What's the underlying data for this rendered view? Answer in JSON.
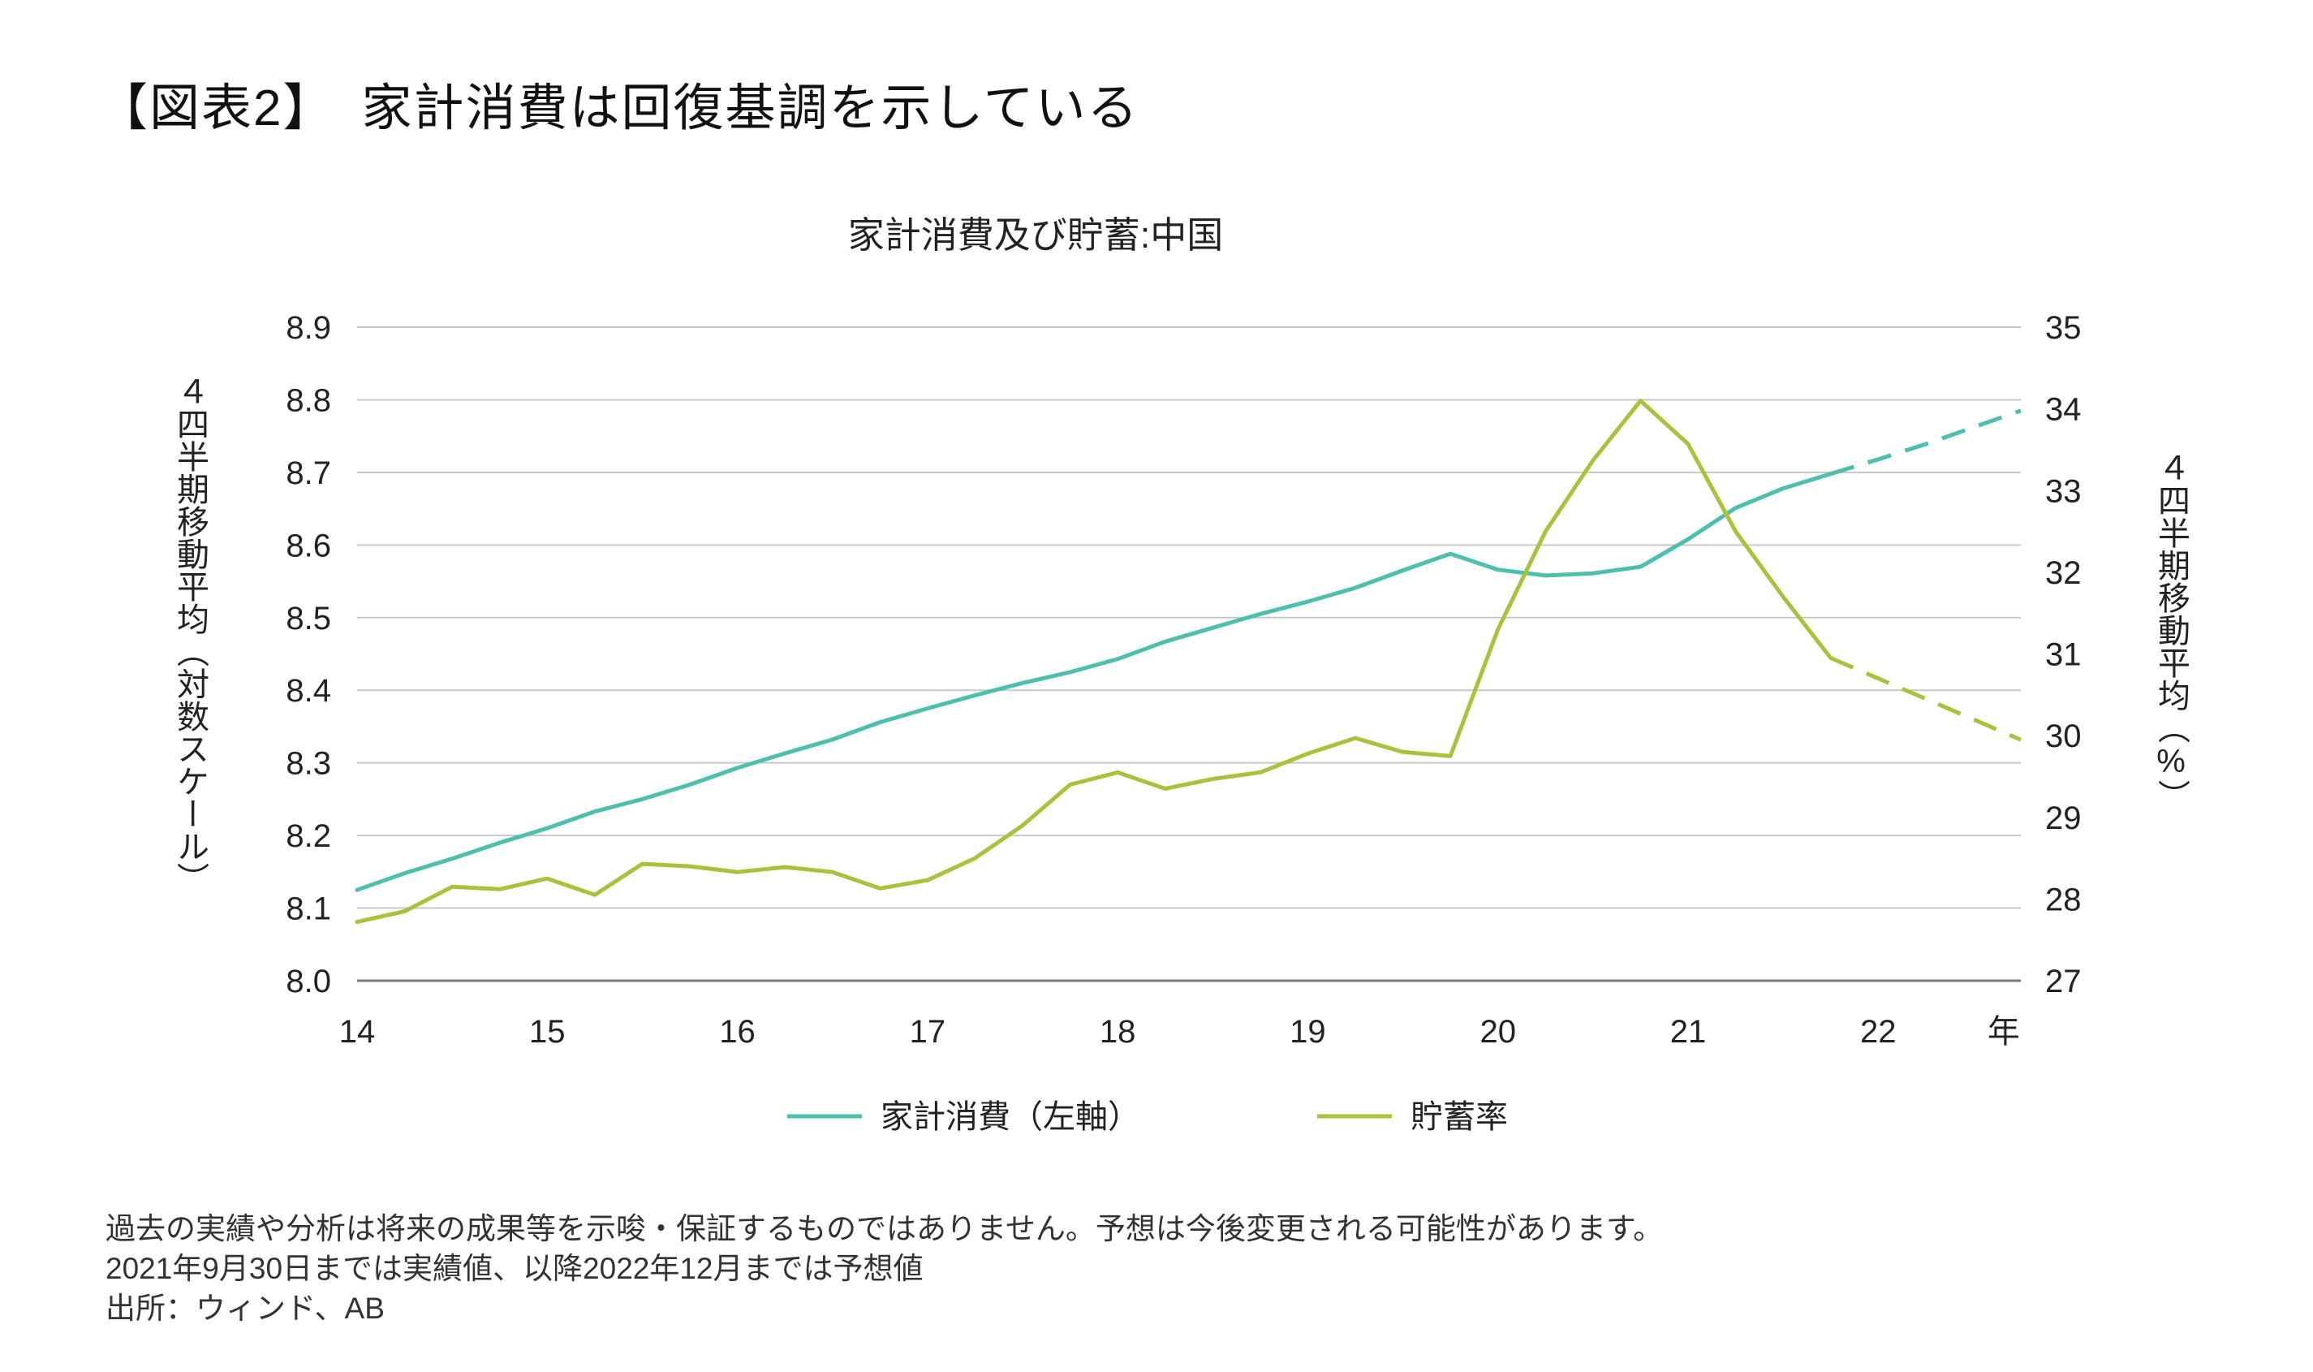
{
  "heading": "【図表2】　家計消費は回復基調を示している",
  "notes": {
    "line1": "過去の実績や分析は将来の成果等を示唆・保証するものではありません。予想は今後変更される可能性があります。",
    "line2": "2021年9月30日までは実績値、以降2022年12月までは予想値",
    "line3": "出所：ウィンド、AB"
  },
  "colors": {
    "consumption": "#4dbfae",
    "saving": "#a9c23b",
    "grid": "#c8c8c8",
    "axis": "#777777"
  },
  "chart_data": {
    "type": "line",
    "title": "家計消費及び貯蓄:中国",
    "ylabel_left": "４四半期移動平均（対数スケール）",
    "ylabel_right": "４四半期移動平均（%）",
    "ylim_left": [
      8.0,
      8.9
    ],
    "ylim_right": [
      27,
      35
    ],
    "yticks_left": [
      "8.9",
      "8.8",
      "8.7",
      "8.6",
      "8.5",
      "8.4",
      "8.3",
      "8.2",
      "8.1",
      "8.0"
    ],
    "yticks_right": [
      "35",
      "34",
      "33",
      "32",
      "31",
      "30",
      "29",
      "28",
      "27"
    ],
    "xlim": [
      2014.0,
      2022.75
    ],
    "xticks": [
      {
        "value": 2014,
        "label": "14"
      },
      {
        "value": 2015,
        "label": "15"
      },
      {
        "value": 2016,
        "label": "16"
      },
      {
        "value": 2017,
        "label": "17"
      },
      {
        "value": 2018,
        "label": "18"
      },
      {
        "value": 2019,
        "label": "19"
      },
      {
        "value": 2020,
        "label": "20"
      },
      {
        "value": 2021,
        "label": "21"
      },
      {
        "value": 2022,
        "label": "22"
      },
      {
        "value": 2022.66,
        "label": "年"
      }
    ],
    "grid": true,
    "legend_position": "bottom",
    "series": [
      {
        "name": "家計消費（左軸）",
        "axis": "left",
        "color_key": "consumption",
        "x": [
          2014.0,
          2014.25,
          2014.5,
          2014.75,
          2015.0,
          2015.25,
          2015.5,
          2015.75,
          2016.0,
          2016.25,
          2016.5,
          2016.75,
          2017.0,
          2017.25,
          2017.5,
          2017.75,
          2018.0,
          2018.25,
          2018.5,
          2018.75,
          2019.0,
          2019.25,
          2019.5,
          2019.75,
          2020.0,
          2020.25,
          2020.5,
          2020.75,
          2021.0,
          2021.25,
          2021.5,
          2021.75,
          2022.0,
          2022.25,
          2022.5,
          2022.75
        ],
        "values": [
          8.125,
          8.148,
          8.168,
          8.19,
          8.21,
          8.233,
          8.25,
          8.27,
          8.293,
          8.313,
          8.332,
          8.356,
          8.375,
          8.393,
          8.41,
          8.425,
          8.443,
          8.467,
          8.486,
          8.505,
          8.522,
          8.541,
          8.565,
          8.588,
          8.566,
          8.558,
          8.561,
          8.57,
          8.608,
          8.651,
          8.678,
          8.698,
          8.718,
          8.739,
          8.762,
          8.785
        ],
        "actual_until_index": 31
      },
      {
        "name": "貯蓄率",
        "axis": "right",
        "color_key": "saving",
        "x": [
          2014.0,
          2014.25,
          2014.5,
          2014.75,
          2015.0,
          2015.25,
          2015.5,
          2015.75,
          2016.0,
          2016.25,
          2016.5,
          2016.75,
          2017.0,
          2017.25,
          2017.5,
          2017.75,
          2018.0,
          2018.25,
          2018.5,
          2018.75,
          2019.0,
          2019.25,
          2019.5,
          2019.75,
          2020.0,
          2020.25,
          2020.5,
          2020.75,
          2021.0,
          2021.25,
          2021.5,
          2021.75,
          2022.0,
          2022.25,
          2022.5,
          2022.75
        ],
        "values": [
          27.72,
          27.85,
          28.15,
          28.12,
          28.25,
          28.05,
          28.43,
          28.4,
          28.33,
          28.39,
          28.33,
          28.13,
          28.23,
          28.5,
          28.9,
          29.4,
          29.55,
          29.35,
          29.47,
          29.55,
          29.78,
          29.97,
          29.8,
          29.75,
          31.3,
          32.5,
          33.37,
          34.1,
          33.57,
          32.5,
          31.7,
          30.95,
          30.7,
          30.45,
          30.2,
          29.95
        ],
        "actual_until_index": 31
      }
    ]
  }
}
